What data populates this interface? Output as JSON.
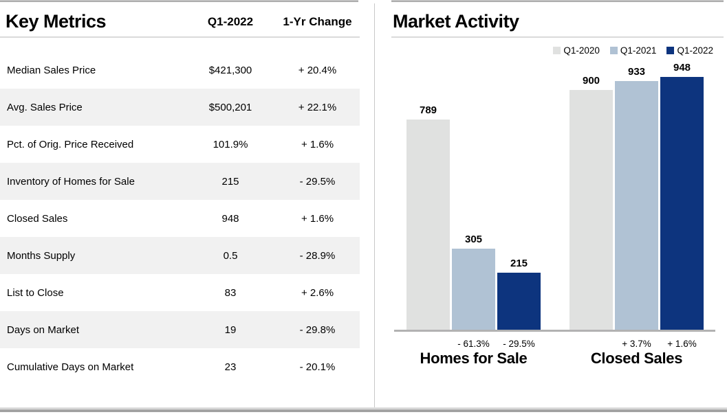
{
  "key_metrics": {
    "title": "Key Metrics",
    "columns": [
      "Q1-2022",
      "1-Yr Change"
    ],
    "rows": [
      {
        "metric": "Median Sales Price",
        "value": "$421,300",
        "change": "+ 20.4%"
      },
      {
        "metric": "Avg. Sales Price",
        "value": "$500,201",
        "change": "+ 22.1%"
      },
      {
        "metric": "Pct. of Orig. Price Received",
        "value": "101.9%",
        "change": "+ 1.6%"
      },
      {
        "metric": "Inventory of Homes for Sale",
        "value": "215",
        "change": "- 29.5%"
      },
      {
        "metric": "Closed Sales",
        "value": "948",
        "change": "+ 1.6%"
      },
      {
        "metric": "Months Supply",
        "value": "0.5",
        "change": "- 28.9%"
      },
      {
        "metric": "List to Close",
        "value": "83",
        "change": "+ 2.6%"
      },
      {
        "metric": "Days on Market",
        "value": "19",
        "change": "- 29.8%"
      },
      {
        "metric": "Cumulative Days on Market",
        "value": "23",
        "change": "- 20.1%"
      }
    ],
    "row_alt_color": "#f1f1f1"
  },
  "chart_data": {
    "type": "bar",
    "title": "Market Activity",
    "categories": [
      "Homes for Sale",
      "Closed Sales"
    ],
    "series": [
      {
        "name": "Q1-2020",
        "values": [
          789,
          900
        ],
        "color": "#e0e1e0",
        "changes": [
          null,
          null
        ]
      },
      {
        "name": "Q1-2021",
        "values": [
          305,
          933
        ],
        "color": "#b0c2d4",
        "changes": [
          "- 61.3%",
          "+ 3.7%"
        ]
      },
      {
        "name": "Q1-2022",
        "values": [
          215,
          948
        ],
        "color": "#0d347e",
        "changes": [
          "- 29.5%",
          "+ 1.6%"
        ]
      }
    ],
    "ylim": [
      0,
      992
    ],
    "legend_position": "top-right",
    "grid": "off",
    "axis_line_color": "#b2b2b2"
  }
}
